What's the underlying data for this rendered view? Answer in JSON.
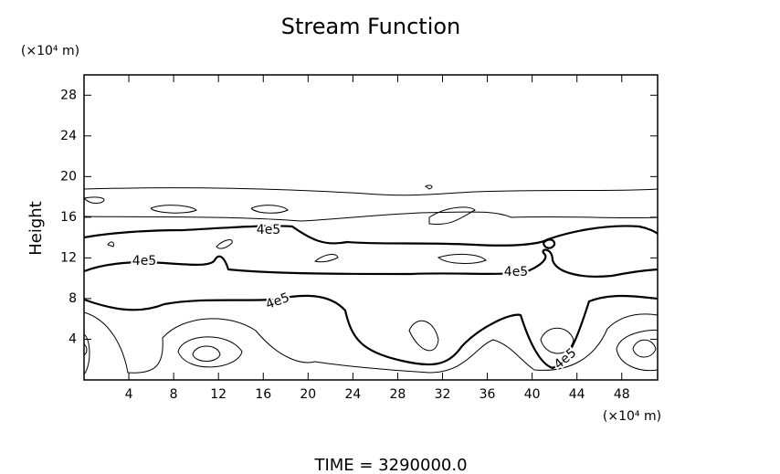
{
  "chart_data": {
    "type": "contour",
    "title": "Stream Function",
    "y_label": "Height",
    "y_unit": "(×10⁴ m)",
    "x_unit": "(×10⁴ m)",
    "footer": "TIME = 3290000.0",
    "xlim": [
      0,
      51.2
    ],
    "ylim": [
      0,
      30
    ],
    "xticks": [
      4,
      8,
      12,
      16,
      20,
      24,
      28,
      32,
      36,
      40,
      44,
      48
    ],
    "yticks": [
      4,
      8,
      12,
      16,
      20,
      24,
      28
    ],
    "contour_labels": [
      "4e5",
      "4e5",
      "4e5",
      "4e5",
      "4e5"
    ]
  }
}
